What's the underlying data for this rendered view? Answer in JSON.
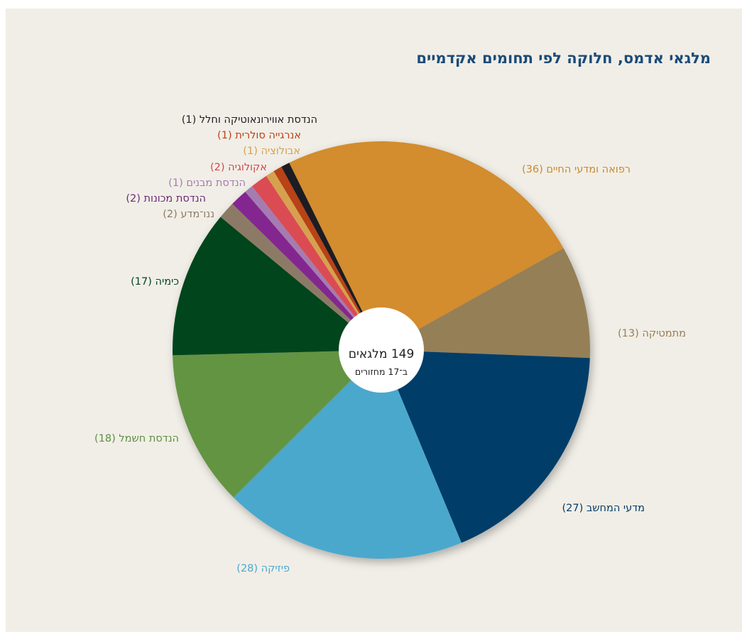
{
  "chart_data": {
    "type": "pie",
    "title": "מלגאי אדמס, חלוקה לפי תחומים אקדמיים",
    "center_text": "149 מלגאים",
    "center_subtext": "ב־17 מחזורים",
    "total": 149,
    "slices": [
      {
        "label": "רפואה ומדעי החיים (36)",
        "value": 36,
        "color": "#d38c2e"
      },
      {
        "label": "מתמטיקה (13)",
        "value": 13,
        "color": "#957f56"
      },
      {
        "label": "מדעי המחשב (27)",
        "value": 27,
        "color": "#003d69"
      },
      {
        "label": "פיזיקה (28)",
        "value": 28,
        "color": "#4ba8cd"
      },
      {
        "label": "הנדסת חשמל (18)",
        "value": 18,
        "color": "#639443"
      },
      {
        "label": "כימיה (17)",
        "value": 17,
        "color": "#02451f"
      },
      {
        "label": "ננו־מדע (2)",
        "value": 2,
        "color": "#8d7a66"
      },
      {
        "label": "הנדסת מכונות (2)",
        "value": 2,
        "color": "#84268f"
      },
      {
        "label": "הנדסת מבנים (1)",
        "value": 1,
        "color": "#a57cb1"
      },
      {
        "label": "אקולוגיה (2)",
        "value": 2,
        "color": "#db4c52"
      },
      {
        "label": "אבולוציה (1)",
        "value": 1,
        "color": "#d6a14f"
      },
      {
        "label": "אנרגייה סולרית (1)",
        "value": 1,
        "color": "#b94214"
      },
      {
        "label": "הנדסת אווירונאוטיקה וחלל (1)",
        "value": 1,
        "color": "#1e1d23"
      }
    ],
    "label_colors": [
      "#c9892f",
      "#957f56",
      "#003d69",
      "#4ba8cd",
      "#5e8e41",
      "#02451f",
      "#8d7a66",
      "#6c2a78",
      "#a57cb1",
      "#d4474d",
      "#d6a14f",
      "#b94214",
      "#1e1d23"
    ],
    "legend": "none"
  }
}
